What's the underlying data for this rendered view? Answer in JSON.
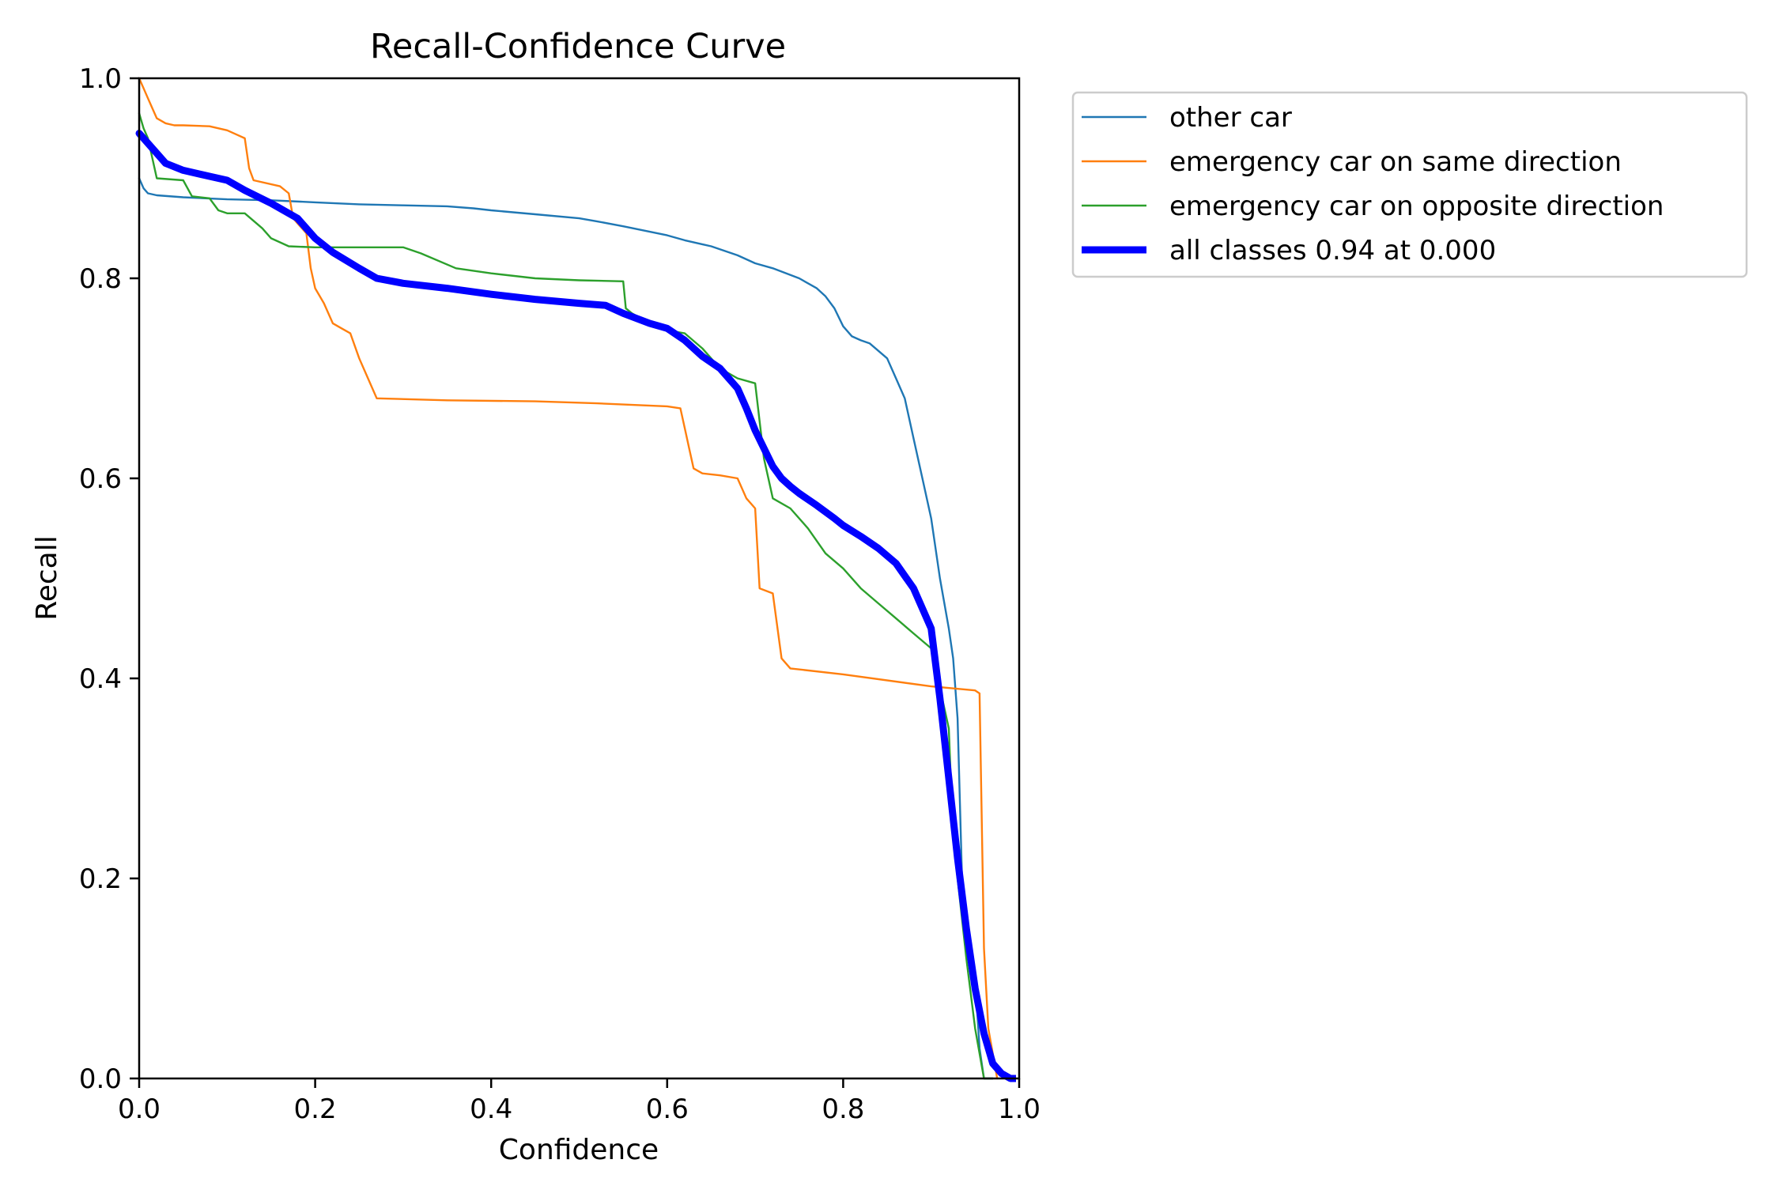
{
  "chart_data": {
    "type": "line",
    "title": "Recall-Confidence Curve",
    "xlabel": "Confidence",
    "ylabel": "Recall",
    "xlim": [
      0.0,
      1.0
    ],
    "ylim": [
      0.0,
      1.0
    ],
    "xticks": [
      "0.0",
      "0.2",
      "0.4",
      "0.6",
      "0.8",
      "1.0"
    ],
    "yticks": [
      "0.0",
      "0.2",
      "0.4",
      "0.6",
      "0.8",
      "1.0"
    ],
    "grid": false,
    "legend_position": "outside-top-right",
    "series": [
      {
        "name": "other car",
        "color": "#1f77b4",
        "linewidth": "thin",
        "x": [
          0.0,
          0.005,
          0.01,
          0.02,
          0.05,
          0.1,
          0.15,
          0.2,
          0.25,
          0.3,
          0.35,
          0.38,
          0.4,
          0.45,
          0.5,
          0.52,
          0.55,
          0.6,
          0.62,
          0.65,
          0.68,
          0.7,
          0.72,
          0.75,
          0.77,
          0.78,
          0.79,
          0.8,
          0.81,
          0.82,
          0.83,
          0.85,
          0.86,
          0.87,
          0.88,
          0.89,
          0.9,
          0.91,
          0.92,
          0.925,
          0.93,
          0.935,
          0.94,
          0.945,
          0.95,
          0.955,
          0.96,
          0.97
        ],
        "y": [
          0.9,
          0.89,
          0.885,
          0.883,
          0.881,
          0.879,
          0.878,
          0.876,
          0.874,
          0.873,
          0.872,
          0.87,
          0.868,
          0.864,
          0.86,
          0.857,
          0.852,
          0.843,
          0.838,
          0.832,
          0.823,
          0.815,
          0.81,
          0.8,
          0.79,
          0.782,
          0.77,
          0.752,
          0.742,
          0.738,
          0.735,
          0.72,
          0.7,
          0.68,
          0.64,
          0.6,
          0.56,
          0.5,
          0.45,
          0.42,
          0.36,
          0.2,
          0.14,
          0.12,
          0.1,
          0.03,
          0.0,
          0.0
        ]
      },
      {
        "name": "emergency car on same direction",
        "color": "#ff7f0e",
        "linewidth": "thin",
        "x": [
          0.0,
          0.005,
          0.01,
          0.015,
          0.02,
          0.03,
          0.04,
          0.05,
          0.08,
          0.1,
          0.11,
          0.12,
          0.125,
          0.13,
          0.16,
          0.17,
          0.175,
          0.18,
          0.19,
          0.195,
          0.2,
          0.21,
          0.22,
          0.23,
          0.24,
          0.25,
          0.26,
          0.27,
          0.35,
          0.45,
          0.52,
          0.6,
          0.615,
          0.62,
          0.625,
          0.63,
          0.64,
          0.66,
          0.68,
          0.69,
          0.7,
          0.705,
          0.72,
          0.73,
          0.74,
          0.8,
          0.9,
          0.95,
          0.955,
          0.96,
          0.965,
          0.975
        ],
        "y": [
          1.0,
          0.99,
          0.98,
          0.97,
          0.96,
          0.955,
          0.953,
          0.953,
          0.952,
          0.948,
          0.944,
          0.94,
          0.91,
          0.898,
          0.892,
          0.885,
          0.86,
          0.855,
          0.845,
          0.81,
          0.79,
          0.775,
          0.755,
          0.75,
          0.745,
          0.72,
          0.7,
          0.68,
          0.678,
          0.677,
          0.675,
          0.672,
          0.67,
          0.65,
          0.63,
          0.61,
          0.605,
          0.603,
          0.6,
          0.58,
          0.57,
          0.49,
          0.485,
          0.42,
          0.41,
          0.404,
          0.392,
          0.388,
          0.385,
          0.13,
          0.05,
          0.0
        ]
      },
      {
        "name": "emergency car on opposite direction",
        "color": "#2ca02c",
        "linewidth": "thin",
        "x": [
          0.0,
          0.005,
          0.01,
          0.02,
          0.05,
          0.06,
          0.08,
          0.09,
          0.1,
          0.12,
          0.14,
          0.15,
          0.17,
          0.2,
          0.25,
          0.3,
          0.32,
          0.36,
          0.4,
          0.45,
          0.5,
          0.55,
          0.553,
          0.56,
          0.58,
          0.6,
          0.62,
          0.64,
          0.66,
          0.68,
          0.7,
          0.71,
          0.72,
          0.74,
          0.76,
          0.78,
          0.8,
          0.82,
          0.84,
          0.86,
          0.88,
          0.9,
          0.92,
          0.925,
          0.93,
          0.94,
          0.95,
          0.96,
          0.97
        ],
        "y": [
          0.965,
          0.95,
          0.94,
          0.9,
          0.898,
          0.882,
          0.88,
          0.868,
          0.865,
          0.865,
          0.85,
          0.84,
          0.832,
          0.831,
          0.831,
          0.831,
          0.825,
          0.81,
          0.805,
          0.8,
          0.798,
          0.797,
          0.77,
          0.765,
          0.755,
          0.748,
          0.745,
          0.73,
          0.71,
          0.7,
          0.695,
          0.62,
          0.58,
          0.57,
          0.55,
          0.525,
          0.51,
          0.49,
          0.475,
          0.46,
          0.445,
          0.43,
          0.35,
          0.24,
          0.2,
          0.12,
          0.05,
          0.0,
          0.0
        ]
      },
      {
        "name": "all classes 0.94 at 0.000",
        "color": "#0000ff",
        "linewidth": "thick",
        "x": [
          0.0,
          0.02,
          0.03,
          0.05,
          0.08,
          0.1,
          0.12,
          0.15,
          0.18,
          0.2,
          0.22,
          0.25,
          0.27,
          0.3,
          0.35,
          0.4,
          0.45,
          0.5,
          0.53,
          0.55,
          0.58,
          0.6,
          0.62,
          0.64,
          0.66,
          0.68,
          0.69,
          0.7,
          0.71,
          0.72,
          0.73,
          0.74,
          0.75,
          0.77,
          0.79,
          0.8,
          0.82,
          0.84,
          0.86,
          0.88,
          0.9,
          0.91,
          0.92,
          0.93,
          0.94,
          0.95,
          0.96,
          0.97,
          0.98,
          0.99,
          1.0
        ],
        "y": [
          0.945,
          0.925,
          0.915,
          0.908,
          0.902,
          0.898,
          0.888,
          0.875,
          0.86,
          0.84,
          0.826,
          0.81,
          0.8,
          0.795,
          0.79,
          0.784,
          0.779,
          0.775,
          0.773,
          0.765,
          0.755,
          0.75,
          0.738,
          0.722,
          0.71,
          0.69,
          0.67,
          0.648,
          0.63,
          0.612,
          0.6,
          0.592,
          0.585,
          0.573,
          0.56,
          0.553,
          0.542,
          0.53,
          0.515,
          0.49,
          0.45,
          0.38,
          0.3,
          0.22,
          0.15,
          0.09,
          0.045,
          0.015,
          0.005,
          0.0,
          0.0
        ]
      }
    ]
  }
}
